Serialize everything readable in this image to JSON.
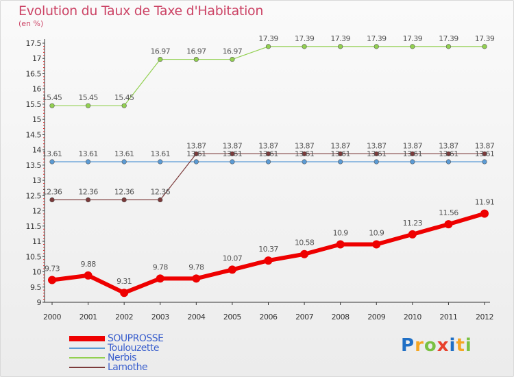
{
  "header": {
    "title": "Evolution du Taux de Taxe d'Habitation",
    "subtitle": "(en %)"
  },
  "chart_data": {
    "type": "line",
    "title": "Evolution du Taux de Taxe d'Habitation",
    "ylabel": "(en %)",
    "xlabel": "",
    "ylim": [
      9,
      17.5
    ],
    "yticks": [
      "9",
      "9.5",
      "10",
      "10.5",
      "11",
      "11.5",
      "12",
      "12.5",
      "13",
      "13.5",
      "14",
      "14.5",
      "15",
      "15.5",
      "16",
      "16.5",
      "17",
      "17.5"
    ],
    "x": [
      "2000",
      "2001",
      "2002",
      "2003",
      "2004",
      "2005",
      "2006",
      "2007",
      "2008",
      "2009",
      "2010",
      "2011",
      "2012"
    ],
    "grid": false,
    "legend_position": "bottom-left",
    "series": [
      {
        "name": "SOUPROSSE",
        "color": "#ee0000",
        "values": [
          9.73,
          9.88,
          9.31,
          9.78,
          9.78,
          10.07,
          10.37,
          10.58,
          10.9,
          10.9,
          11.23,
          11.56,
          11.91
        ],
        "labels": [
          "9.73",
          "9.88",
          "9.31",
          "9.78",
          "9.78",
          "10.07",
          "10.37",
          "10.58",
          "10.9",
          "10.9",
          "11.23",
          "11.56",
          "11.91"
        ]
      },
      {
        "name": "Toulouzette",
        "color": "#5b9bd5",
        "values": [
          13.61,
          13.61,
          13.61,
          13.61,
          13.61,
          13.61,
          13.61,
          13.61,
          13.61,
          13.61,
          13.61,
          13.61,
          13.61
        ],
        "labels": [
          "13.61",
          "13.61",
          "13.61",
          "13.61",
          "13.61",
          "13.61",
          "13.61",
          "13.61",
          "13.61",
          "13.61",
          "13.61",
          "13.61",
          "13.61"
        ]
      },
      {
        "name": "Nerbis",
        "color": "#92d050",
        "values": [
          15.45,
          15.45,
          15.45,
          16.97,
          16.97,
          16.97,
          17.39,
          17.39,
          17.39,
          17.39,
          17.39,
          17.39,
          17.39
        ],
        "labels": [
          "15.45",
          "15.45",
          "15.45",
          "16.97",
          "16.97",
          "16.97",
          "17.39",
          "17.39",
          "17.39",
          "17.39",
          "17.39",
          "17.39",
          "17.39"
        ]
      },
      {
        "name": "Lamothe",
        "color": "#7b3a3a",
        "values": [
          12.36,
          12.36,
          12.36,
          12.36,
          13.87,
          13.87,
          13.87,
          13.87,
          13.87,
          13.87,
          13.87,
          13.87,
          13.87
        ],
        "labels": [
          "12.36",
          "12.36",
          "12.36",
          "12.36",
          "13.87",
          "13.87",
          "13.87",
          "13.87",
          "13.87",
          "13.87",
          "13.87",
          "13.87",
          "13.87"
        ]
      }
    ]
  },
  "legend": {
    "items": [
      {
        "label": "SOUPROSSE",
        "color": "#ee0000",
        "label_color": "#3a5fcd"
      },
      {
        "label": "Toulouzette",
        "color": "#5b9bd5",
        "label_color": "#3a5fcd"
      },
      {
        "label": "Nerbis",
        "color": "#92d050",
        "label_color": "#3a5fcd"
      },
      {
        "label": "Lamothe",
        "color": "#7b3a3a",
        "label_color": "#3a5fcd"
      }
    ]
  },
  "logo": {
    "letters": [
      "P",
      "r",
      "o",
      "x",
      "i",
      "t",
      "i"
    ],
    "colors": [
      "#1f6fc5",
      "#f5a623",
      "#7ac143",
      "#e8412c",
      "#1f6fc5",
      "#f5a623",
      "#7ac143"
    ]
  }
}
